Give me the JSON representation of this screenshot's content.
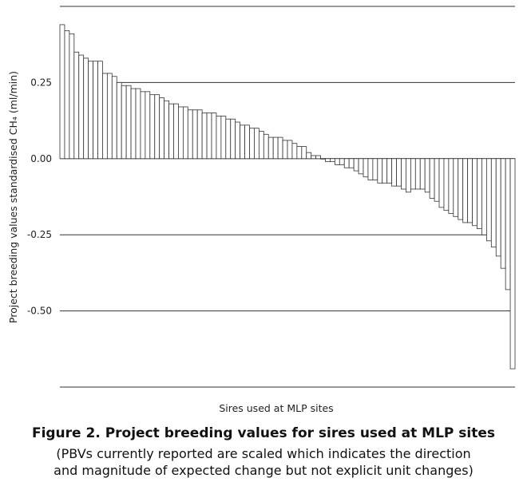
{
  "chart_data": {
    "type": "bar",
    "xlabel": "Sires used at MLP sites",
    "ylabel": "Project breeding values standardised CH₄ (ml/min)",
    "ylim": [
      -0.75,
      0.5
    ],
    "yticks": [
      0.25,
      0.0,
      -0.25,
      -0.5
    ],
    "ytick_labels": [
      "0.25",
      "0.00",
      "-0.25",
      "-0.50"
    ],
    "grid": true,
    "values": [
      0.44,
      0.42,
      0.41,
      0.35,
      0.34,
      0.33,
      0.32,
      0.32,
      0.32,
      0.28,
      0.28,
      0.27,
      0.25,
      0.24,
      0.24,
      0.23,
      0.23,
      0.22,
      0.22,
      0.21,
      0.21,
      0.2,
      0.19,
      0.18,
      0.18,
      0.17,
      0.17,
      0.16,
      0.16,
      0.16,
      0.15,
      0.15,
      0.15,
      0.14,
      0.14,
      0.13,
      0.13,
      0.12,
      0.11,
      0.11,
      0.1,
      0.1,
      0.09,
      0.08,
      0.07,
      0.07,
      0.07,
      0.06,
      0.06,
      0.05,
      0.04,
      0.04,
      0.02,
      0.01,
      0.01,
      0.0,
      -0.01,
      -0.01,
      -0.02,
      -0.02,
      -0.03,
      -0.03,
      -0.04,
      -0.05,
      -0.06,
      -0.07,
      -0.07,
      -0.08,
      -0.08,
      -0.08,
      -0.09,
      -0.09,
      -0.1,
      -0.11,
      -0.1,
      -0.1,
      -0.1,
      -0.11,
      -0.13,
      -0.14,
      -0.16,
      -0.17,
      -0.18,
      -0.19,
      -0.2,
      -0.21,
      -0.21,
      -0.22,
      -0.23,
      -0.25,
      -0.27,
      -0.29,
      -0.32,
      -0.36,
      -0.43,
      -0.69
    ]
  },
  "caption": {
    "title": "Figure 2. Project breeding values for sires used at MLP sites",
    "subtitle_line1": "(PBVs currently reported are scaled which indicates the direction",
    "subtitle_line2": "and magnitude of expected change but not explicit unit changes)"
  }
}
